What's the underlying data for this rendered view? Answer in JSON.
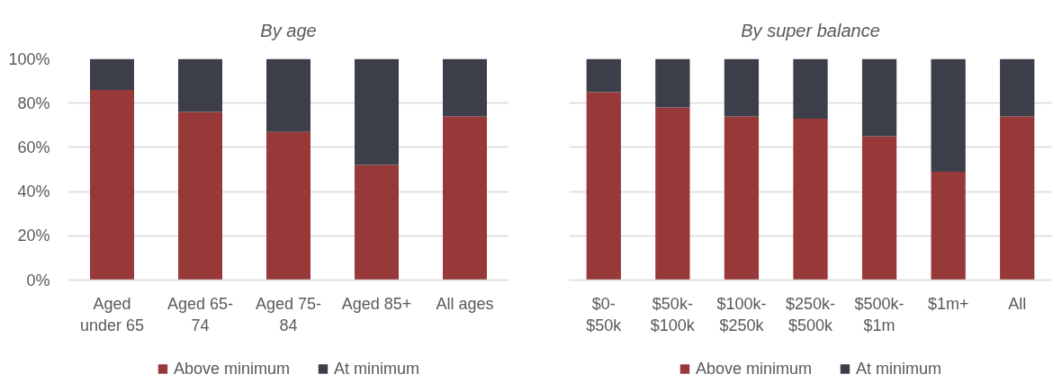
{
  "chart_data": [
    {
      "type": "bar",
      "stacked": true,
      "title": "By age",
      "categories": [
        "Aged under 65",
        "Aged 65-74",
        "Aged 75-84",
        "Aged 85+",
        "All ages"
      ],
      "series": [
        {
          "name": "Above minimum",
          "color": "#983939",
          "values": [
            86,
            76,
            67,
            52,
            74
          ]
        },
        {
          "name": "At minimum",
          "color": "#3c3e4a",
          "values": [
            14,
            24,
            33,
            48,
            26
          ]
        }
      ],
      "ylim": [
        0,
        100
      ],
      "yticks": [
        {
          "value": 0,
          "label": "0%"
        },
        {
          "value": 20,
          "label": "20%"
        },
        {
          "value": 40,
          "label": "40%"
        },
        {
          "value": 60,
          "label": "60%"
        },
        {
          "value": 80,
          "label": "80%"
        },
        {
          "value": 100,
          "label": "100%"
        }
      ],
      "grid": "y",
      "legend": "bottom"
    },
    {
      "type": "bar",
      "stacked": true,
      "title": "By super balance",
      "categories": [
        "$0-$50k",
        "$50k-$100k",
        "$100k-$250k",
        "$250k-$500k",
        "$500k-$1m",
        "$1m+",
        "All"
      ],
      "series": [
        {
          "name": "Above minimum",
          "color": "#983939",
          "values": [
            85,
            78,
            74,
            73,
            65,
            49,
            74
          ]
        },
        {
          "name": "At minimum",
          "color": "#3c3e4a",
          "values": [
            15,
            22,
            26,
            27,
            35,
            51,
            26
          ]
        }
      ],
      "ylim": [
        0,
        100
      ],
      "yticks": [
        0,
        20,
        40,
        60,
        80,
        100
      ],
      "grid": "y",
      "legend": "bottom",
      "tick_labels": "x"
    }
  ]
}
